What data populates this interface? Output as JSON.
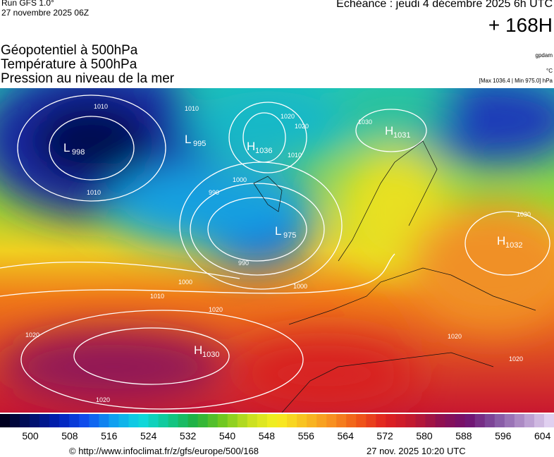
{
  "header": {
    "run": "Run GFS 1.0°",
    "run_date": "27 novembre 2025 06Z",
    "valid": "Echéance : jeudi 4 décembre 2025 6h UTC",
    "lead": "+ 168H",
    "titles": [
      "Géopotentiel à 500hPa",
      "Température à 500hPa",
      "Pression au niveau de la mer"
    ],
    "units": [
      "gpdam",
      "°C",
      "[Max 1036.4 | Min 975.0] hPa"
    ]
  },
  "map": {
    "centers": [
      {
        "letter": "L",
        "value": "998"
      },
      {
        "letter": "L",
        "value": "995"
      },
      {
        "letter": "H",
        "value": "1036"
      },
      {
        "letter": "L",
        "value": "975"
      },
      {
        "letter": "H",
        "value": "1031"
      },
      {
        "letter": "H",
        "value": "1032"
      },
      {
        "letter": "H",
        "value": "1030"
      }
    ],
    "contour_labels": [
      "1010",
      "1020",
      "1020",
      "1010",
      "1030",
      "1010",
      "1000",
      "990",
      "1010",
      "1030",
      "990",
      "1000",
      "1000",
      "1010",
      "1020",
      "1020",
      "1020",
      "1020",
      "1020"
    ]
  },
  "colorbar": {
    "labels": [
      "500",
      "508",
      "516",
      "524",
      "532",
      "540",
      "548",
      "556",
      "564",
      "572",
      "580",
      "588",
      "596",
      "604"
    ]
  },
  "footer": {
    "url": "© http://www.infoclimat.fr/z/gfs/europe/500/168",
    "timestamp": "27 nov. 2025 10:20 UTC"
  }
}
